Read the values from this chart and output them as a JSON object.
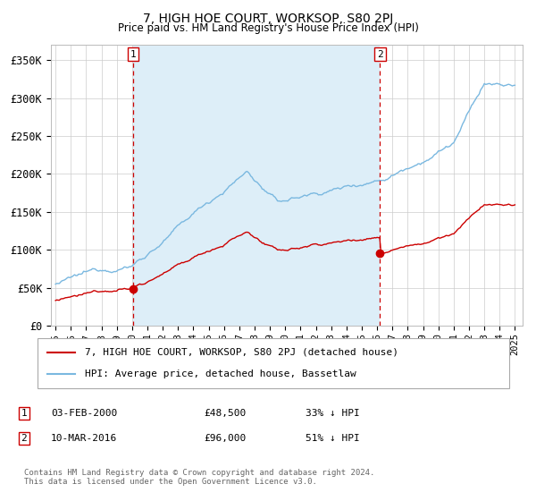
{
  "title": "7, HIGH HOE COURT, WORKSOP, S80 2PJ",
  "subtitle": "Price paid vs. HM Land Registry's House Price Index (HPI)",
  "ylabel_ticks": [
    "£0",
    "£50K",
    "£100K",
    "£150K",
    "£200K",
    "£250K",
    "£300K",
    "£350K"
  ],
  "ytick_values": [
    0,
    50000,
    100000,
    150000,
    200000,
    250000,
    300000,
    350000
  ],
  "ylim": [
    0,
    370000
  ],
  "xlim_start": 1994.7,
  "xlim_end": 2025.5,
  "hpi_color": "#7ab8e0",
  "hpi_fill_color": "#ddeef8",
  "price_color": "#cc0000",
  "vline_color": "#cc0000",
  "marker1_date": 2000.085,
  "marker1_price": 48500,
  "marker1_label": "1",
  "marker2_date": 2016.19,
  "marker2_price": 96000,
  "marker2_label": "2",
  "legend_label_price": "7, HIGH HOE COURT, WORKSOP, S80 2PJ (detached house)",
  "legend_label_hpi": "HPI: Average price, detached house, Bassetlaw",
  "note1_num": "1",
  "note1_date": "03-FEB-2000",
  "note1_price": "£48,500",
  "note1_pct": "33% ↓ HPI",
  "note2_num": "2",
  "note2_date": "10-MAR-2016",
  "note2_price": "£96,000",
  "note2_pct": "51% ↓ HPI",
  "footer": "Contains HM Land Registry data © Crown copyright and database right 2024.\nThis data is licensed under the Open Government Licence v3.0.",
  "background_color": "#ffffff",
  "grid_color": "#cccccc"
}
